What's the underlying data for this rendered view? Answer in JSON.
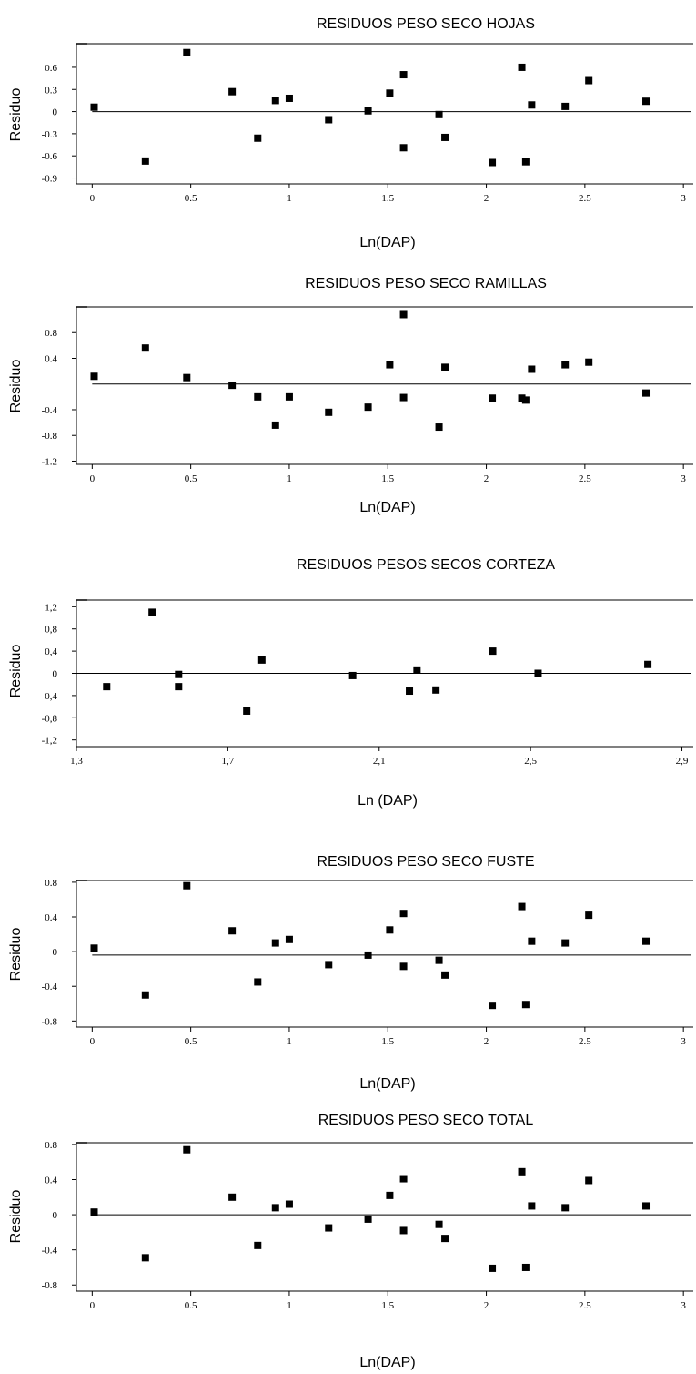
{
  "chart_data": [
    {
      "type": "scatter",
      "title": "RESIDUOS PESO SECO HOJAS",
      "xlabel": "Ln(DAP)",
      "ylabel": "Residuo",
      "xlim": [
        -0.08,
        3.05
      ],
      "ylim": [
        -0.98,
        0.92
      ],
      "xticks": [
        0,
        0.5,
        1,
        1.5,
        2,
        2.5,
        3
      ],
      "xtick_labels": [
        "0",
        "0.5",
        "1",
        "1.5",
        "2",
        "2.5",
        "3"
      ],
      "yticks": [
        0.6,
        0.3,
        0,
        -0.3,
        -0.6,
        -0.9
      ],
      "ytick_labels": [
        "0.6",
        "0.3",
        "0",
        "-0.3",
        "-0.6",
        "-0.9"
      ],
      "reference_line": 0,
      "grid": false,
      "x": [
        0.01,
        0.27,
        0.48,
        0.71,
        0.84,
        0.93,
        1.0,
        1.2,
        1.4,
        1.51,
        1.58,
        1.58,
        1.76,
        1.79,
        2.03,
        2.18,
        2.2,
        2.23,
        2.4,
        2.52,
        2.81
      ],
      "y": [
        0.06,
        -0.67,
        0.8,
        0.27,
        -0.36,
        0.15,
        0.18,
        -0.11,
        0.01,
        0.25,
        0.5,
        -0.49,
        -0.04,
        -0.35,
        -0.69,
        0.6,
        -0.68,
        0.09,
        0.07,
        0.42,
        0.14
      ]
    },
    {
      "type": "scatter",
      "title": "RESIDUOS PESO SECO RAMILLAS",
      "xlabel": "Ln(DAP)",
      "ylabel": "Residuo",
      "xlim": [
        -0.08,
        3.05
      ],
      "ylim": [
        -1.25,
        1.2
      ],
      "xticks": [
        0,
        0.5,
        1,
        1.5,
        2,
        2.5,
        3
      ],
      "xtick_labels": [
        "0",
        "0.5",
        "1",
        "1.5",
        "2",
        "2.5",
        "3"
      ],
      "yticks": [
        0.8,
        0.4,
        -0.4,
        -0.8,
        -1.2
      ],
      "ytick_labels": [
        "0.8",
        "0.4",
        "-0.4",
        "-0.8",
        "-1.2"
      ],
      "reference_line": 0,
      "grid": false,
      "x": [
        0.01,
        0.27,
        0.48,
        0.71,
        0.84,
        0.93,
        1.0,
        1.2,
        1.4,
        1.51,
        1.58,
        1.58,
        1.76,
        1.79,
        2.03,
        2.18,
        2.2,
        2.23,
        2.4,
        2.52,
        2.81
      ],
      "y": [
        0.12,
        0.56,
        0.1,
        -0.02,
        -0.2,
        -0.64,
        -0.2,
        -0.44,
        -0.36,
        0.3,
        1.08,
        -0.21,
        -0.67,
        0.26,
        -0.22,
        -0.22,
        -0.25,
        0.23,
        0.3,
        0.34,
        -0.14
      ]
    },
    {
      "type": "scatter",
      "title": "RESIDUOS PESOS SECOS CORTEZA",
      "xlabel": "Ln (DAP)",
      "ylabel": "Residuo",
      "xlim": [
        1.3,
        2.93
      ],
      "ylim": [
        -1.32,
        1.32
      ],
      "xticks": [
        1.3,
        1.7,
        2.1,
        2.5,
        2.9
      ],
      "xtick_labels": [
        "1,3",
        "1,7",
        "2,1",
        "2,5",
        "2,9"
      ],
      "yticks": [
        1.2,
        0.8,
        0.4,
        0,
        -0.4,
        -0.8,
        -1.2
      ],
      "ytick_labels": [
        "1,2",
        "0,8",
        "0,4",
        "0",
        "-0,4",
        "-0,8",
        "-1,2"
      ],
      "reference_line": 0,
      "grid": false,
      "x": [
        1.38,
        1.5,
        1.57,
        1.57,
        1.75,
        1.79,
        2.03,
        2.18,
        2.2,
        2.25,
        2.4,
        2.52,
        2.81
      ],
      "y": [
        -0.24,
        1.1,
        -0.02,
        -0.24,
        -0.68,
        0.24,
        -0.04,
        -0.32,
        0.06,
        -0.3,
        0.4,
        0.0,
        0.16
      ]
    },
    {
      "type": "scatter",
      "title": "RESIDUOS PESO SECO FUSTE",
      "xlabel": "Ln(DAP)",
      "ylabel": "Residuo",
      "xlim": [
        -0.08,
        3.05
      ],
      "ylim": [
        -0.87,
        0.82
      ],
      "xticks": [
        0,
        0.5,
        1,
        1.5,
        2,
        2.5,
        3
      ],
      "xtick_labels": [
        "0",
        "0.5",
        "1",
        "1.5",
        "2",
        "2.5",
        "3"
      ],
      "yticks": [
        0.8,
        0.4,
        0,
        -0.4,
        -0.8
      ],
      "ytick_labels": [
        "0.8",
        "0.4",
        "0",
        "-0.4",
        "-0.8"
      ],
      "reference_line": -0.04,
      "grid": false,
      "x": [
        0.01,
        0.27,
        0.48,
        0.71,
        0.84,
        0.93,
        1.0,
        1.2,
        1.4,
        1.51,
        1.58,
        1.58,
        1.76,
        1.79,
        2.03,
        2.18,
        2.2,
        2.23,
        2.4,
        2.52,
        2.81
      ],
      "y": [
        0.04,
        -0.5,
        0.76,
        0.24,
        -0.35,
        0.1,
        0.14,
        -0.15,
        -0.04,
        0.25,
        0.44,
        -0.17,
        -0.1,
        -0.27,
        -0.62,
        0.52,
        -0.61,
        0.12,
        0.1,
        0.42,
        0.12
      ]
    },
    {
      "type": "scatter",
      "title": "RESIDUOS PESO SECO TOTAL",
      "xlabel": "Ln(DAP)",
      "ylabel": "Residuo",
      "xlim": [
        -0.08,
        3.05
      ],
      "ylim": [
        -0.87,
        0.82
      ],
      "xticks": [
        0,
        0.5,
        1,
        1.5,
        2,
        2.5,
        3
      ],
      "xtick_labels": [
        "0",
        "0.5",
        "1",
        "1.5",
        "2",
        "2.5",
        "3"
      ],
      "yticks": [
        0.8,
        0.4,
        0,
        -0.4,
        -0.8
      ],
      "ytick_labels": [
        "0.8",
        "0.4",
        "0",
        "-0.4",
        "-0.8"
      ],
      "reference_line": 0,
      "grid": false,
      "x": [
        0.01,
        0.27,
        0.48,
        0.71,
        0.84,
        0.93,
        1.0,
        1.2,
        1.4,
        1.51,
        1.58,
        1.58,
        1.76,
        1.79,
        2.03,
        2.18,
        2.2,
        2.23,
        2.4,
        2.52,
        2.81
      ],
      "y": [
        0.03,
        -0.49,
        0.74,
        0.2,
        -0.35,
        0.08,
        0.12,
        -0.15,
        -0.05,
        0.22,
        0.41,
        -0.18,
        -0.11,
        -0.27,
        -0.61,
        0.49,
        -0.6,
        0.1,
        0.08,
        0.39,
        0.1
      ]
    }
  ]
}
